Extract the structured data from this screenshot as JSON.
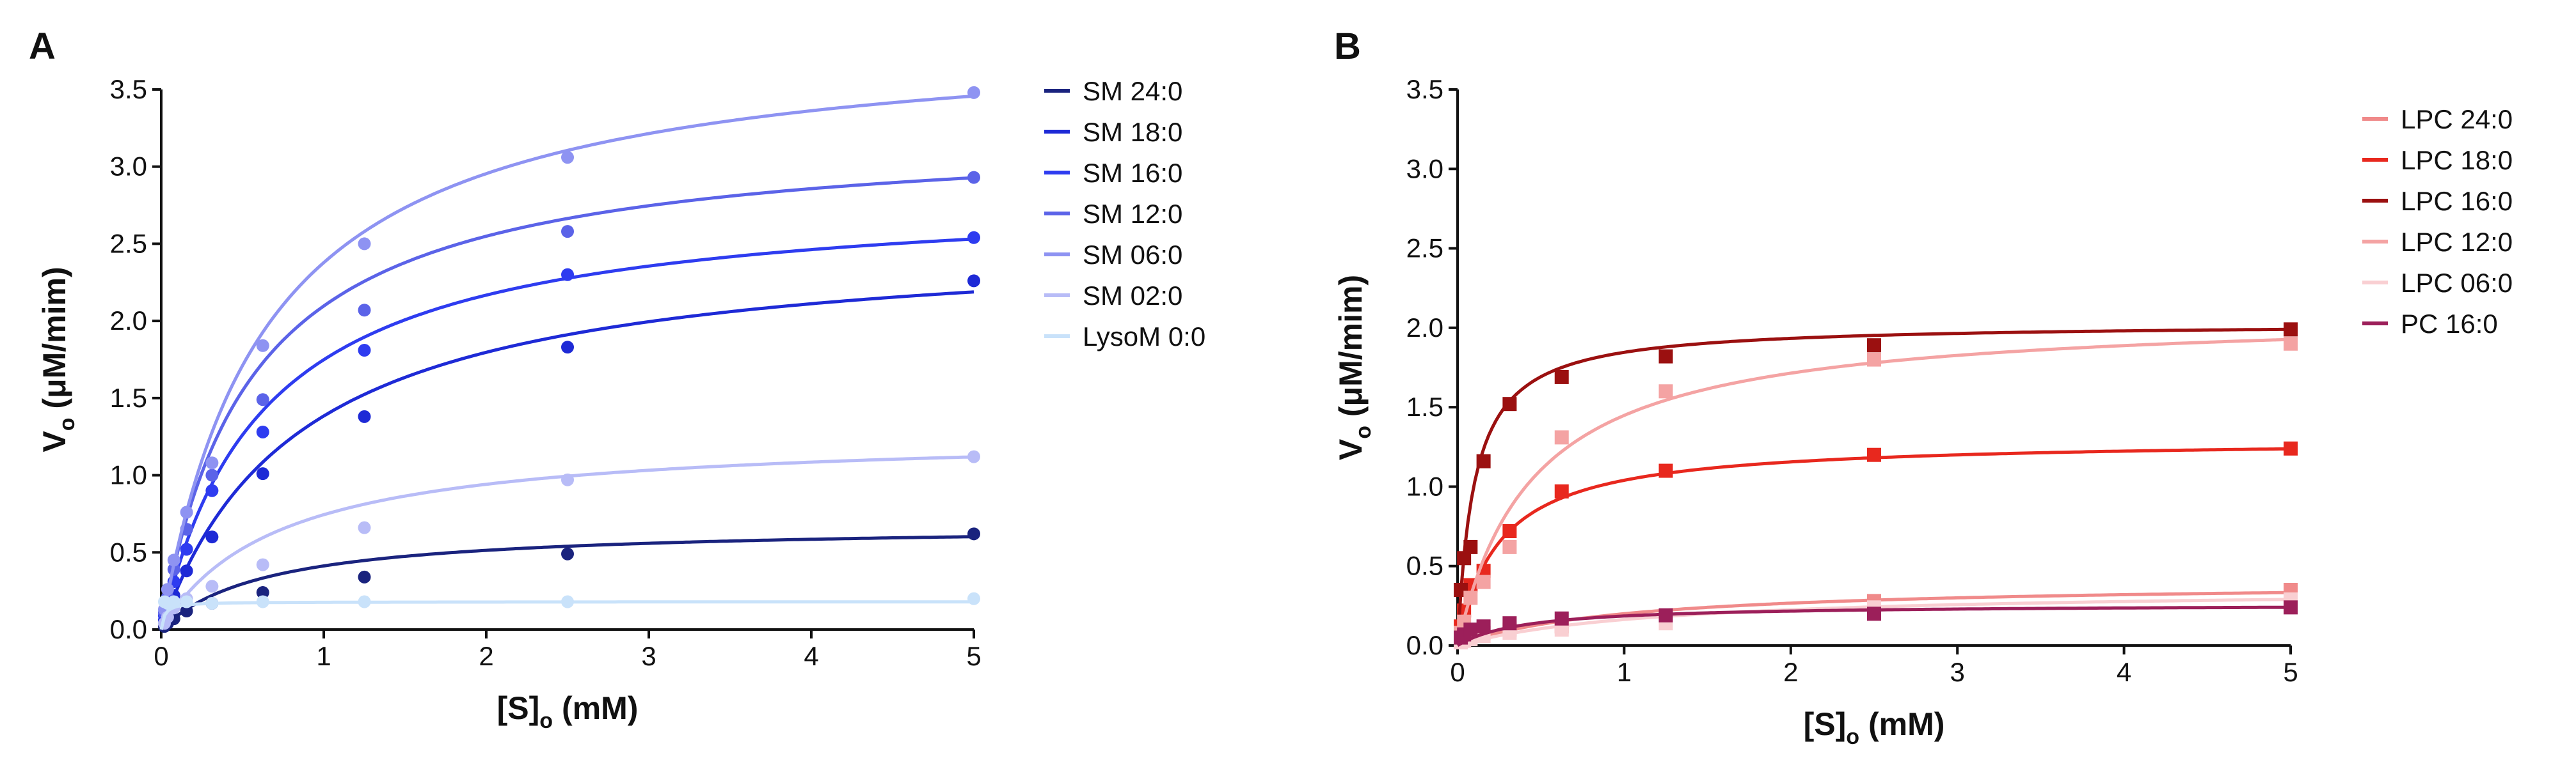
{
  "chart_data": [
    {
      "type": "scatter",
      "panel": "A",
      "marker": "circle",
      "xlabel_main": "[S]",
      "xlabel_sub": "o",
      "xlabel_unit": " (mM)",
      "ylabel_main": "V",
      "ylabel_sub": "o",
      "ylabel_unit": " (μM/mim)",
      "xlim": [
        0,
        5
      ],
      "ylim": [
        0,
        3.5
      ],
      "xticks": [
        0,
        1,
        2,
        3,
        4,
        5
      ],
      "xtick_labels": [
        "0",
        "1",
        "2",
        "3",
        "4",
        "5"
      ],
      "yticks": [
        0,
        0.5,
        1.0,
        1.5,
        2.0,
        2.5,
        3.0,
        3.5
      ],
      "ytick_labels": [
        "0.0",
        "0.5",
        "1.0",
        "1.5",
        "2.0",
        "2.5",
        "3.0",
        "3.5"
      ],
      "legend_position": "right",
      "x": [
        0.0195,
        0.039,
        0.078,
        0.156,
        0.3125,
        0.625,
        1.25,
        2.5,
        5
      ],
      "series": [
        {
          "name": "SM 24:0",
          "color": "#1a237e",
          "vmax": 0.68,
          "km": 0.65,
          "values": [
            0.02,
            0.04,
            0.07,
            0.12,
            0.17,
            0.24,
            0.34,
            0.49,
            0.62
          ]
        },
        {
          "name": "SM 18:0",
          "color": "#1e2ad6",
          "vmax": 2.56,
          "km": 0.85,
          "values": [
            0.06,
            0.12,
            0.22,
            0.38,
            0.6,
            1.01,
            1.38,
            1.83,
            2.26
          ]
        },
        {
          "name": "SM 16:0",
          "color": "#2e3cf0",
          "vmax": 2.85,
          "km": 0.63,
          "values": [
            0.09,
            0.17,
            0.31,
            0.52,
            0.9,
            1.28,
            1.81,
            2.3,
            2.54
          ]
        },
        {
          "name": "SM 12:0",
          "color": "#5b63e8",
          "vmax": 3.25,
          "km": 0.55,
          "values": [
            0.11,
            0.21,
            0.39,
            0.65,
            1.0,
            1.49,
            2.07,
            2.58,
            2.93
          ]
        },
        {
          "name": "SM 06:0",
          "color": "#8e93f2",
          "vmax": 3.9,
          "km": 0.64,
          "values": [
            0.13,
            0.26,
            0.45,
            0.76,
            1.08,
            1.84,
            2.5,
            3.06,
            3.48
          ]
        },
        {
          "name": "SM 02:0",
          "color": "#b8bcf7",
          "vmax": 1.28,
          "km": 0.72,
          "values": [
            0.04,
            0.08,
            0.14,
            0.2,
            0.28,
            0.42,
            0.66,
            0.97,
            1.12
          ]
        },
        {
          "name": "LysoM 0:0",
          "color": "#c9e2fa",
          "vmax": 0.18,
          "km": 0.02,
          "values": [
            0.18,
            0.17,
            0.18,
            0.18,
            0.17,
            0.18,
            0.18,
            0.18,
            0.2
          ]
        }
      ]
    },
    {
      "type": "scatter",
      "panel": "B",
      "marker": "square",
      "xlabel_main": "[S]",
      "xlabel_sub": "o",
      "xlabel_unit": " (mM)",
      "ylabel_main": "V",
      "ylabel_sub": "o",
      "ylabel_unit": " (μM/mim)",
      "xlim": [
        0,
        5
      ],
      "ylim": [
        0,
        3.5
      ],
      "xticks": [
        0,
        1,
        2,
        3,
        4,
        5
      ],
      "xtick_labels": [
        "0",
        "1",
        "2",
        "3",
        "4",
        "5"
      ],
      "yticks": [
        0,
        0.5,
        1.0,
        1.5,
        2.0,
        2.5,
        3.0,
        3.5
      ],
      "ytick_labels": [
        "0.0",
        "0.5",
        "1.0",
        "1.5",
        "2.0",
        "2.5",
        "3.0",
        "3.5"
      ],
      "legend_position": "top-right",
      "x": [
        0.0195,
        0.039,
        0.078,
        0.156,
        0.3125,
        0.625,
        1.25,
        2.5,
        5
      ],
      "series": [
        {
          "name": "LPC 24:0",
          "color": "#f08a8a",
          "vmax": 0.4,
          "km": 1.0,
          "values": [
            0.02,
            0.03,
            0.05,
            0.08,
            0.1,
            0.12,
            0.18,
            0.28,
            0.35
          ]
        },
        {
          "name": "LPC 18:0",
          "color": "#e8281e",
          "vmax": 1.3,
          "km": 0.25,
          "values": [
            0.12,
            0.22,
            0.38,
            0.47,
            0.72,
            0.97,
            1.1,
            1.2,
            1.24
          ]
        },
        {
          "name": "LPC 16:0",
          "color": "#9b1010",
          "vmax": 2.03,
          "km": 0.1,
          "values": [
            0.35,
            0.55,
            0.62,
            1.16,
            1.52,
            1.69,
            1.82,
            1.89,
            1.99
          ]
        },
        {
          "name": "LPC 12:0",
          "color": "#f4a3a3",
          "vmax": 2.1,
          "km": 0.45,
          "values": [
            0.08,
            0.15,
            0.3,
            0.4,
            0.62,
            1.31,
            1.6,
            1.8,
            1.9
          ]
        },
        {
          "name": "LPC 06:0",
          "color": "#f9cfd2",
          "vmax": 0.36,
          "km": 1.2,
          "values": [
            0.02,
            0.03,
            0.04,
            0.06,
            0.08,
            0.1,
            0.14,
            0.24,
            0.29
          ]
        },
        {
          "name": "PC 16:0",
          "color": "#9c1f5a",
          "vmax": 0.26,
          "km": 0.4,
          "values": [
            0.05,
            0.07,
            0.1,
            0.12,
            0.14,
            0.17,
            0.19,
            0.2,
            0.24
          ]
        }
      ]
    }
  ]
}
